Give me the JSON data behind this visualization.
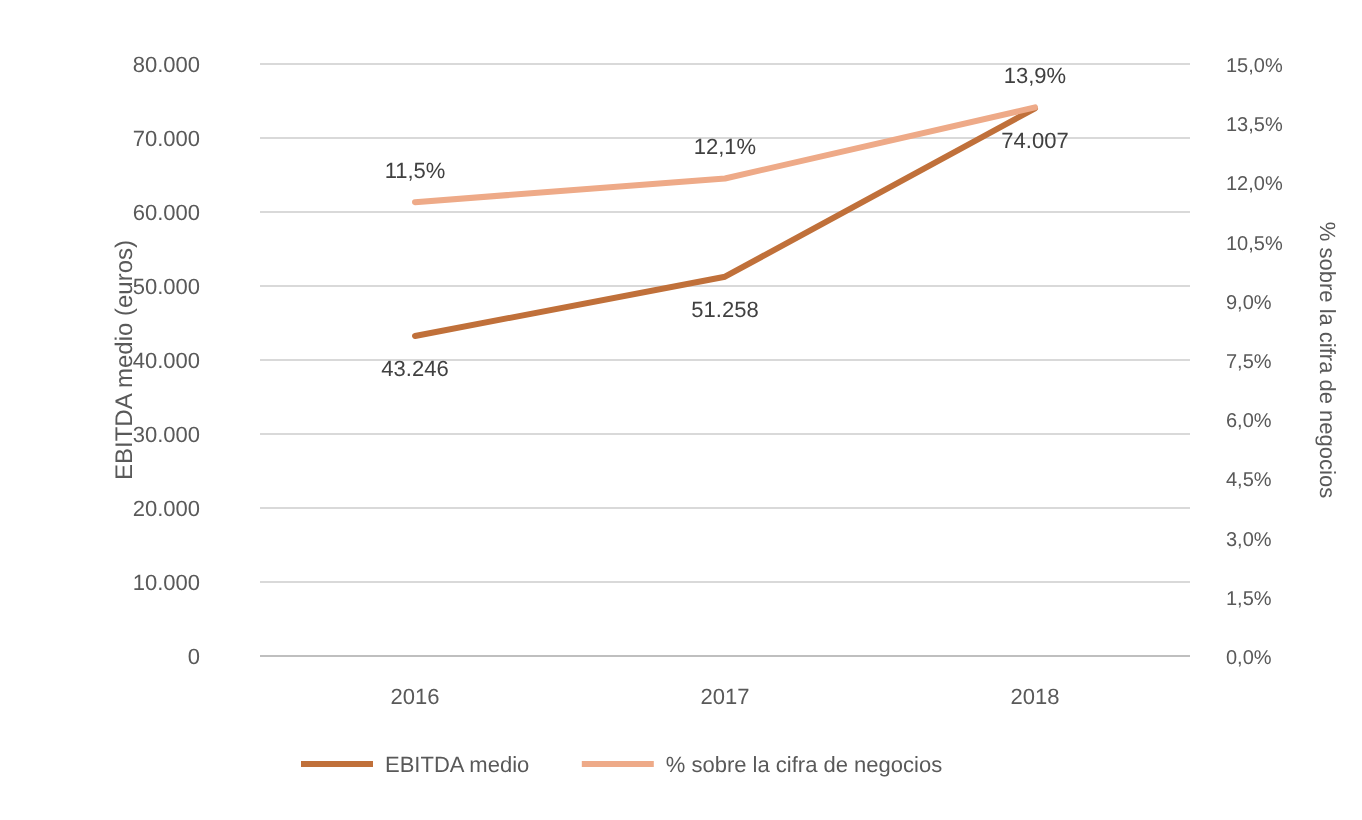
{
  "chart_data": {
    "type": "line",
    "categories": [
      "2016",
      "2017",
      "2018"
    ],
    "series": [
      {
        "name": "EBITDA medio",
        "color": "#c0703a",
        "values": [
          43246,
          51258,
          74007
        ],
        "value_labels": [
          "43.246",
          "51.258",
          "74.007"
        ]
      },
      {
        "name": "% sobre la cifra de negocios",
        "color": "#eeaa88",
        "axis": "y2",
        "values": [
          11.5,
          12.1,
          13.9
        ],
        "value_labels": [
          "11,5%",
          "12,1%",
          "13,9%"
        ]
      }
    ],
    "ylabel": "EBITDA medio (euros)",
    "y2label": "% sobre la cifra de negocios",
    "ylim": [
      0,
      80000
    ],
    "yticks": [
      {
        "value": 0,
        "label": "0"
      },
      {
        "value": 10000,
        "label": "10.000"
      },
      {
        "value": 20000,
        "label": "20.000"
      },
      {
        "value": 30000,
        "label": "30.000"
      },
      {
        "value": 40000,
        "label": "40.000"
      },
      {
        "value": 50000,
        "label": "50.000"
      },
      {
        "value": 60000,
        "label": "60.000"
      },
      {
        "value": 70000,
        "label": "70.000"
      },
      {
        "value": 80000,
        "label": "80.000"
      }
    ],
    "y2lim": [
      0,
      15
    ],
    "y2ticks": [
      {
        "value": 0,
        "label": "0,0%"
      },
      {
        "value": 1.5,
        "label": "1,5%"
      },
      {
        "value": 3,
        "label": "3,0%"
      },
      {
        "value": 4.5,
        "label": "4,5%"
      },
      {
        "value": 6,
        "label": "6,0%"
      },
      {
        "value": 7.5,
        "label": "7,5%"
      },
      {
        "value": 9,
        "label": "9,0%"
      },
      {
        "value": 10.5,
        "label": "10,5%"
      },
      {
        "value": 12,
        "label": "12,0%"
      },
      {
        "value": 13.5,
        "label": "13,5%"
      },
      {
        "value": 15,
        "label": "15,0%"
      }
    ],
    "grid": "y",
    "legend": "bottom",
    "marker": "none",
    "line_style": "solid"
  }
}
